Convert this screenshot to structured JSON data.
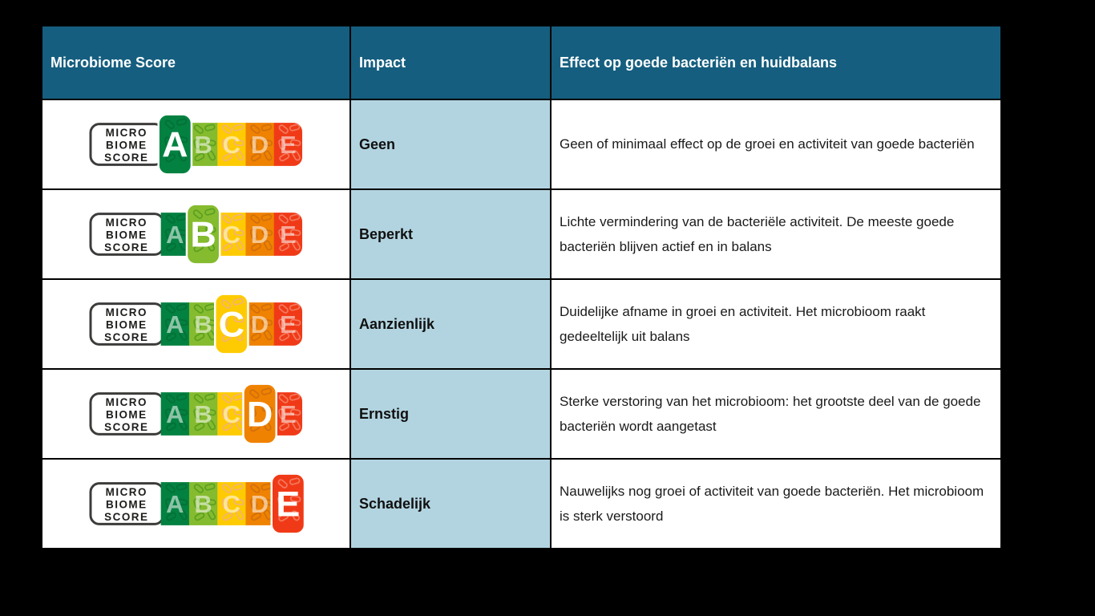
{
  "table": {
    "headers": [
      "Microbiome Score",
      "Impact",
      "Effect op goede bacteriën en huidbalans"
    ],
    "rows": [
      {
        "score": "A",
        "impact": "Geen",
        "effect": "Geen of minimaal effect op de groei en activiteit van goede bacteriën"
      },
      {
        "score": "B",
        "impact": "Beperkt",
        "effect": "Lichte vermindering van de bacteriële activiteit. De meeste goede bacteriën blijven actief en in balans"
      },
      {
        "score": "C",
        "impact": "Aanzienlijk",
        "effect": "Duidelijke afname in groei en activiteit. Het microbioom raakt gedeeltelijk uit balans"
      },
      {
        "score": "D",
        "impact": "Ernstig",
        "effect": "Sterke verstoring van het microbioom: het grootste deel van de goede bacteriën wordt aangetast"
      },
      {
        "score": "E",
        "impact": "Schadelijk",
        "effect": "Nauwelijks nog groei of activiteit van goede bacteriën. Het microbioom is sterk verstoord"
      }
    ]
  },
  "badge": {
    "label_lines": [
      "MICRO",
      "BIOME",
      "SCORE"
    ],
    "letters": [
      {
        "letter": "A",
        "color": "#038141",
        "doodle": "#046b33"
      },
      {
        "letter": "B",
        "color": "#85BB2F",
        "doodle": "#4f9a1e"
      },
      {
        "letter": "C",
        "color": "#FECB02",
        "doodle": "#f0ac92"
      },
      {
        "letter": "D",
        "color": "#EF8200",
        "doodle": "#c96a10"
      },
      {
        "letter": "E",
        "color": "#F03A17",
        "doodle": "#f58a70"
      }
    ]
  },
  "colors": {
    "page_bg": "#000000",
    "header_bg": "#155E7F",
    "impact_bg": "#B2D4E0",
    "border": "#000000"
  }
}
